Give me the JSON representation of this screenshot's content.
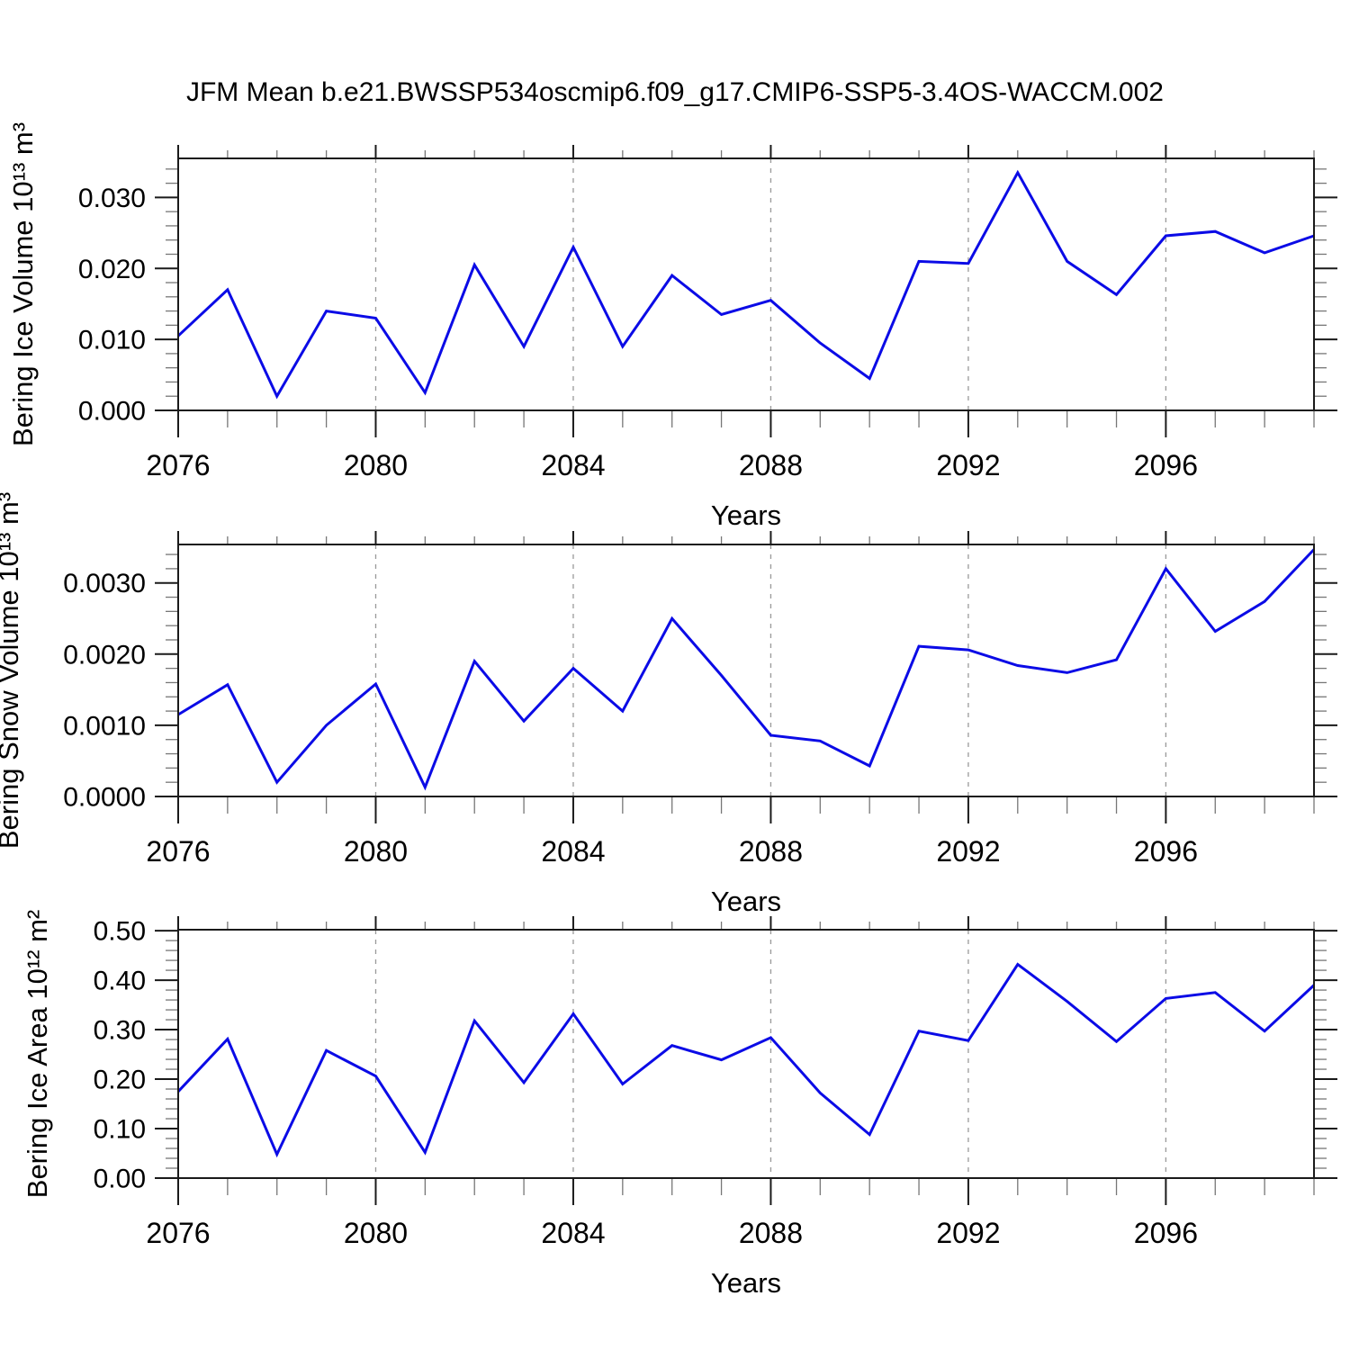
{
  "title": "JFM Mean b.e21.BWSSP534oscmip6.f09_g17.CMIP6-SSP5-3.4OS-WACCM.002",
  "colors": {
    "line": "#0b0be6",
    "grid": "#999999",
    "axis": "#1a1a1a",
    "minor_tick": "#777777",
    "text": "#000000",
    "background": "#ffffff"
  },
  "x_axis": {
    "label": "Years",
    "range": [
      2076,
      2099
    ],
    "major_ticks": [
      2076,
      2080,
      2084,
      2088,
      2092,
      2096
    ],
    "tick_labels": [
      "2076",
      "2080",
      "2084",
      "2088",
      "2092",
      "2096"
    ],
    "minor_step": 1,
    "gridlines": [
      2080,
      2084,
      2088,
      2092,
      2096
    ]
  },
  "years": [
    2076,
    2077,
    2078,
    2079,
    2080,
    2081,
    2082,
    2083,
    2084,
    2085,
    2086,
    2087,
    2088,
    2089,
    2090,
    2091,
    2092,
    2093,
    2094,
    2095,
    2096,
    2097,
    2098,
    2099
  ],
  "chart_data": [
    {
      "type": "line",
      "ylabel": "Bering Ice Volume 10¹³ m³",
      "xlabel": "Years",
      "ylim": [
        0,
        0.0355
      ],
      "ytick_values": [
        0.0,
        0.01,
        0.02,
        0.03
      ],
      "ytick_labels": [
        "0.000",
        "0.010",
        "0.020",
        "0.030"
      ],
      "y_minor_step": 0.002,
      "grid": "vertical-dashed",
      "legend": "none",
      "values": [
        0.0105,
        0.017,
        0.002,
        0.014,
        0.013,
        0.0025,
        0.0205,
        0.009,
        0.023,
        0.009,
        0.019,
        0.0135,
        0.0155,
        0.0095,
        0.0045,
        0.021,
        0.0207,
        0.0335,
        0.021,
        0.0163,
        0.0246,
        0.0252,
        0.0222,
        0.0246
      ]
    },
    {
      "type": "line",
      "ylabel": "Bering Snow Volume 10¹³ m³",
      "xlabel": "Years",
      "ylim": [
        0,
        0.00354
      ],
      "ytick_values": [
        0.0,
        0.001,
        0.002,
        0.003
      ],
      "ytick_labels": [
        "0.0000",
        "0.0010",
        "0.0020",
        "0.0030"
      ],
      "y_minor_step": 0.0002,
      "grid": "vertical-dashed",
      "legend": "none",
      "values": [
        0.00115,
        0.00157,
        0.0002,
        0.001,
        0.00158,
        0.00013,
        0.0019,
        0.00106,
        0.0018,
        0.0012,
        0.0025,
        0.0017,
        0.00086,
        0.00078,
        0.00043,
        0.00211,
        0.00206,
        0.00184,
        0.00174,
        0.00192,
        0.0032,
        0.00232,
        0.00274,
        0.00347
      ]
    },
    {
      "type": "line",
      "ylabel": "Bering Ice Area 10¹² m²",
      "xlabel": "Years",
      "ylim": [
        0,
        0.502
      ],
      "ytick_values": [
        0.0,
        0.1,
        0.2,
        0.3,
        0.4,
        0.5
      ],
      "ytick_labels": [
        "0.00",
        "0.10",
        "0.20",
        "0.30",
        "0.40",
        "0.50"
      ],
      "y_minor_step": 0.02,
      "grid": "vertical-dashed",
      "legend": "none",
      "values": [
        0.175,
        0.281,
        0.048,
        0.258,
        0.206,
        0.052,
        0.318,
        0.193,
        0.332,
        0.19,
        0.268,
        0.239,
        0.284,
        0.172,
        0.088,
        0.297,
        0.278,
        0.432,
        0.357,
        0.276,
        0.363,
        0.375,
        0.297,
        0.39
      ]
    }
  ]
}
